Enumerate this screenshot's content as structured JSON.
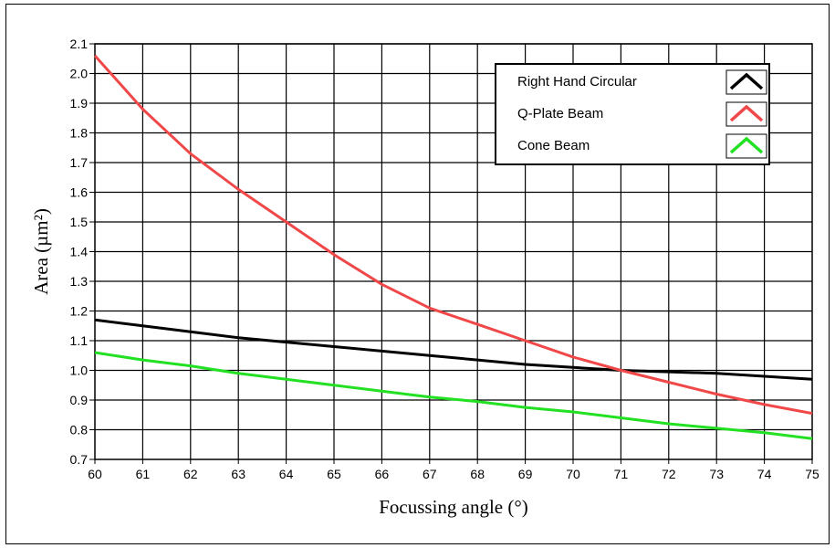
{
  "chart_data": {
    "type": "line",
    "title": "",
    "xlabel": "Focussing angle (°)",
    "ylabel": "Area (µm²)",
    "xlim": [
      60,
      75
    ],
    "ylim": [
      0.7,
      2.1
    ],
    "x_ticks": [
      "60",
      "61",
      "62",
      "63",
      "64",
      "65",
      "66",
      "67",
      "68",
      "69",
      "70",
      "71",
      "72",
      "73",
      "74",
      "75"
    ],
    "y_ticks": [
      "0.7",
      "0.8",
      "0.9",
      "1.0",
      "1.1",
      "1.2",
      "1.3",
      "1.4",
      "1.5",
      "1.6",
      "1.7",
      "1.8",
      "1.9",
      "2.0",
      "2.1"
    ],
    "grid": true,
    "legend_position": "top-right",
    "x": [
      60,
      61,
      62,
      63,
      64,
      65,
      66,
      67,
      68,
      69,
      70,
      71,
      72,
      73,
      74,
      75
    ],
    "series": [
      {
        "name": "Right Hand Circular",
        "color": "#000000",
        "values": [
          1.17,
          1.15,
          1.13,
          1.11,
          1.095,
          1.08,
          1.065,
          1.05,
          1.035,
          1.02,
          1.01,
          1.0,
          0.995,
          0.99,
          0.98,
          0.97
        ]
      },
      {
        "name": "Q-Plate Beam",
        "color": "#f04848",
        "values": [
          2.06,
          1.88,
          1.73,
          1.61,
          1.5,
          1.39,
          1.29,
          1.21,
          1.155,
          1.1,
          1.045,
          1.0,
          0.96,
          0.92,
          0.885,
          0.855
        ]
      },
      {
        "name": "Cone Beam",
        "color": "#22e022",
        "values": [
          1.06,
          1.035,
          1.015,
          0.99,
          0.97,
          0.95,
          0.93,
          0.91,
          0.895,
          0.875,
          0.86,
          0.84,
          0.82,
          0.805,
          0.79,
          0.77
        ]
      }
    ]
  }
}
